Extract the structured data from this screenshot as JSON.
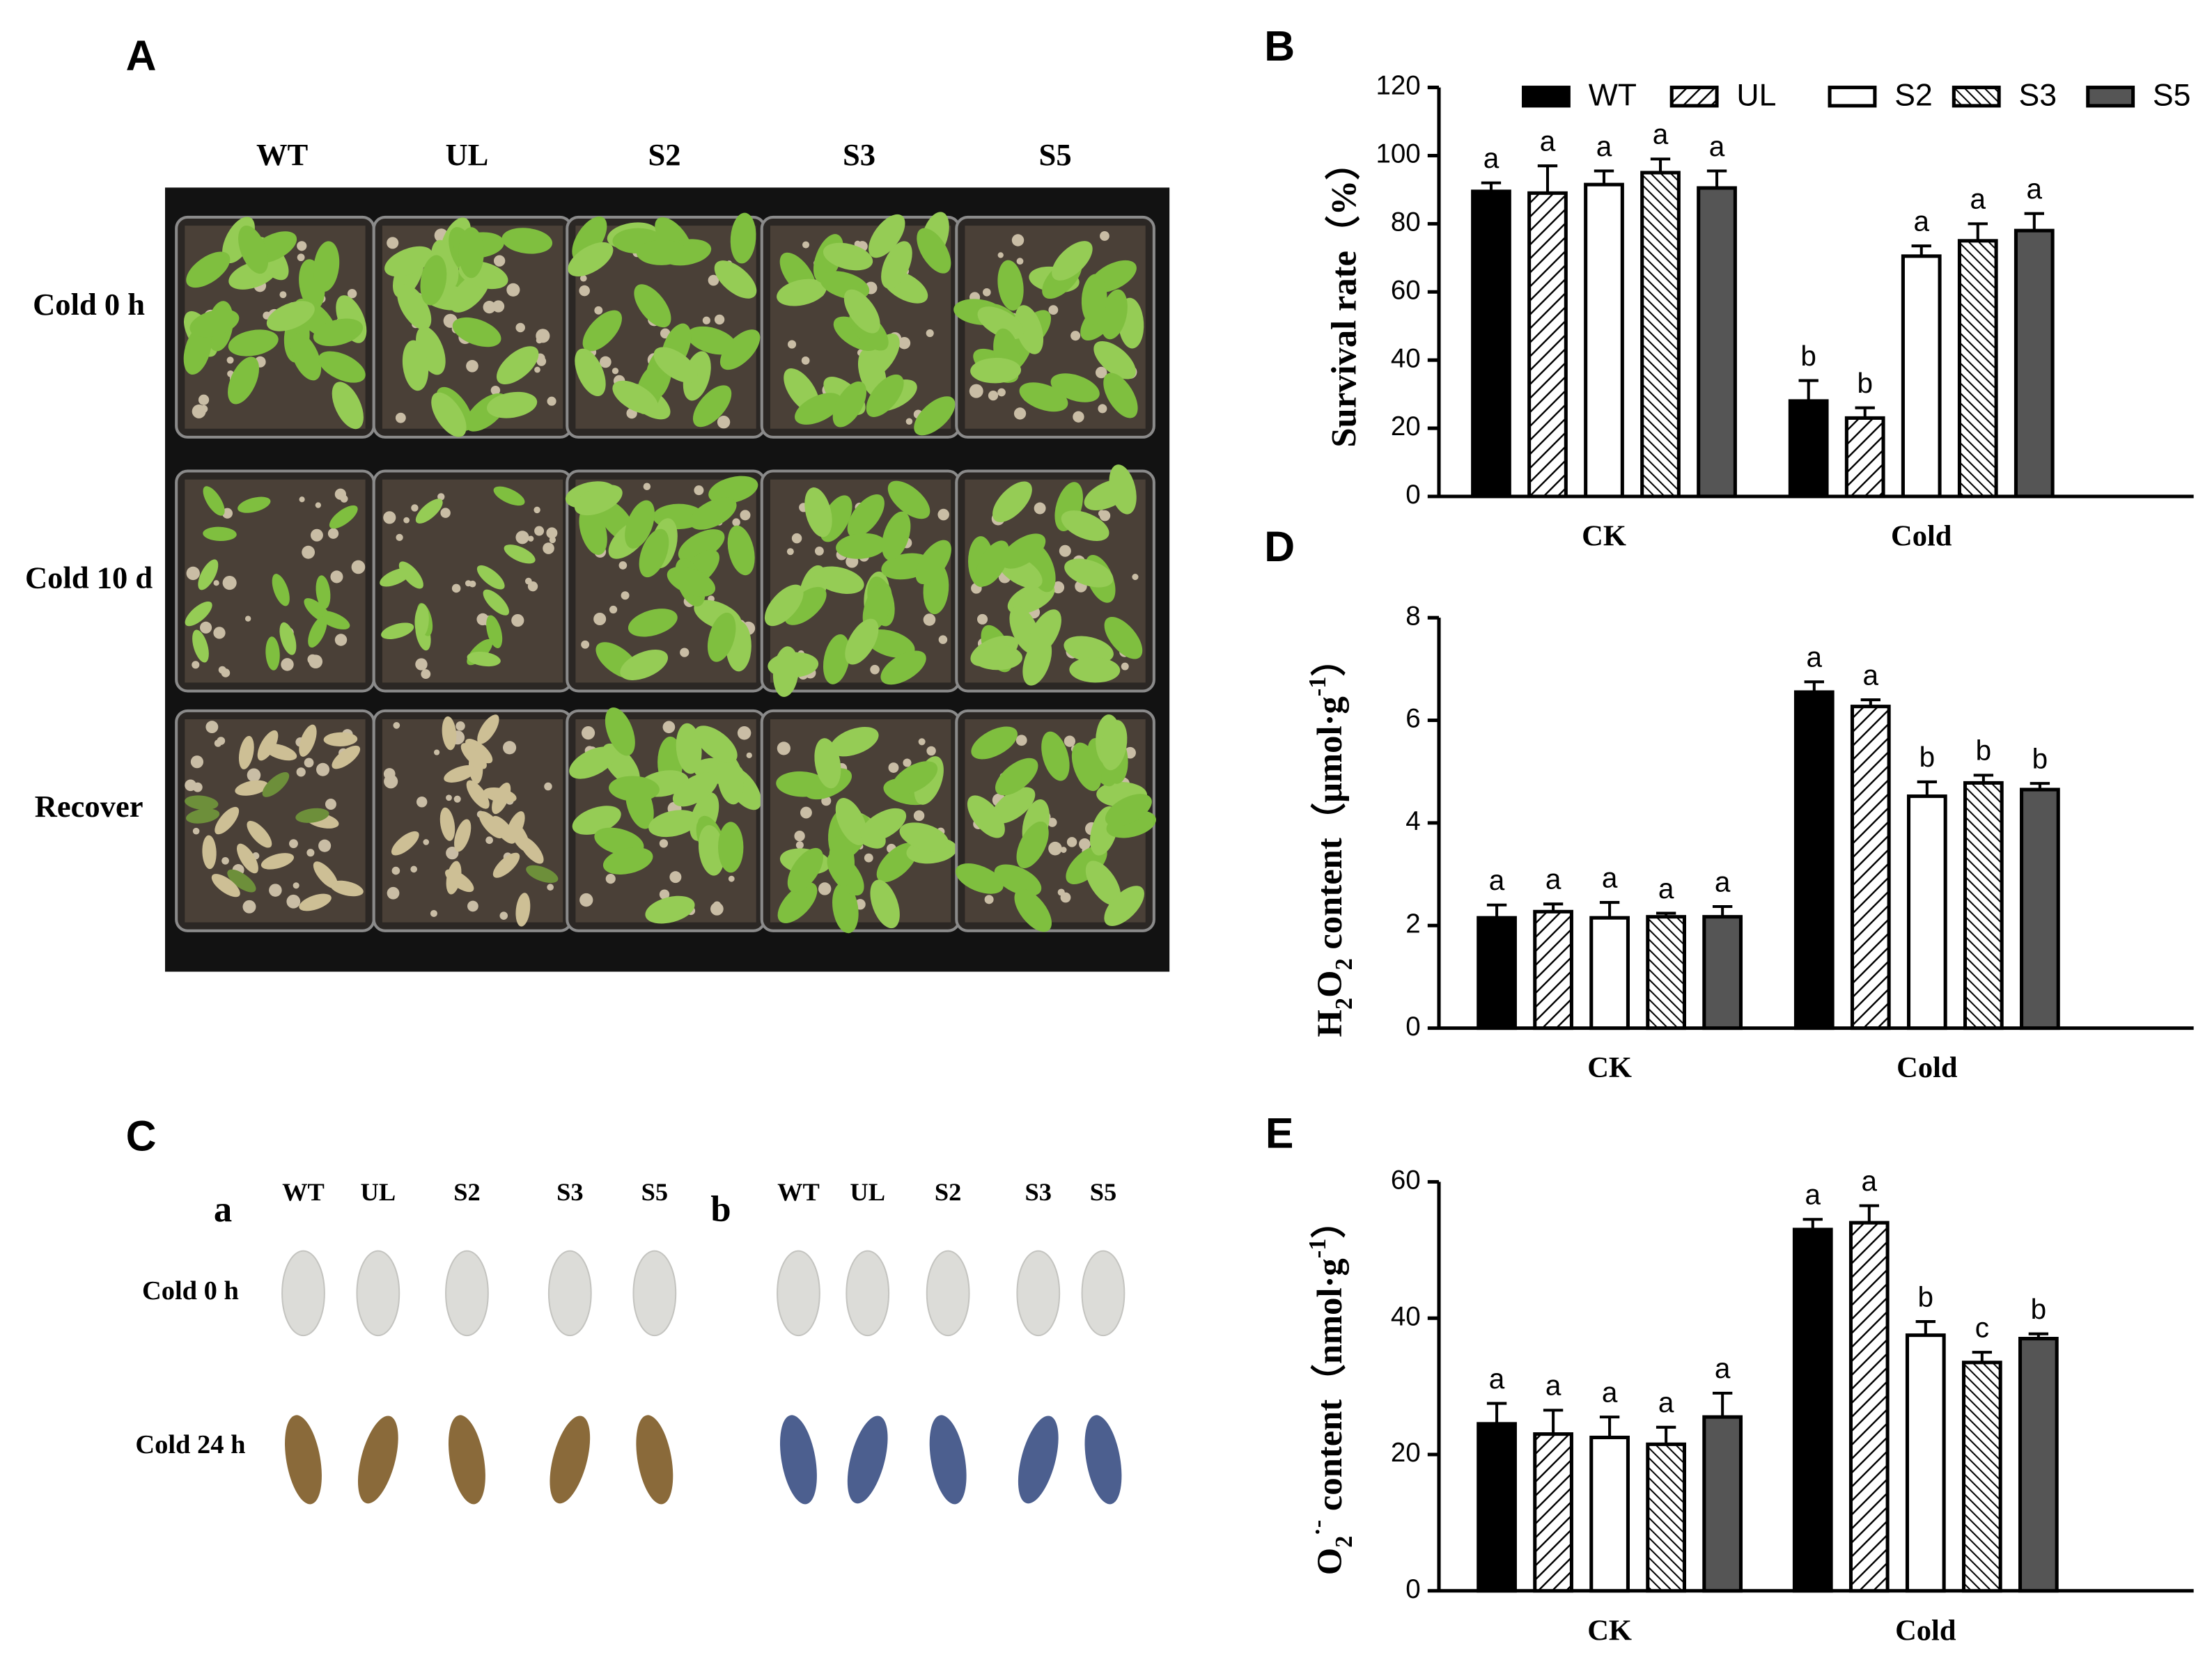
{
  "panel_a": {
    "label": "A",
    "columns": [
      "WT",
      "UL",
      "S2",
      "S3",
      "S5"
    ],
    "rows": [
      "Cold 0 h",
      "Cold 10 d",
      "Recover"
    ]
  },
  "panel_c": {
    "label": "C",
    "sub_labels": [
      "a",
      "b"
    ],
    "columns": [
      "WT",
      "UL",
      "S2",
      "S3",
      "S5"
    ],
    "rows": [
      "Cold 0 h",
      "Cold 24 h"
    ]
  },
  "chart_data": [
    {
      "type": "bar",
      "panel": "B",
      "categories": [
        "CK",
        "Cold"
      ],
      "ylabel": [
        {
          "text": "Survival rate（%）",
          "script": "normal"
        }
      ],
      "ylim": [
        0,
        120
      ],
      "yticks": [
        0,
        20,
        40,
        60,
        80,
        100,
        120
      ],
      "legend": true,
      "series": [
        {
          "name": "WT",
          "color": "#000000",
          "pattern": "solid",
          "values": [
            89.5,
            28
          ],
          "errors": [
            2.5,
            6
          ],
          "letters": [
            "a",
            "b"
          ]
        },
        {
          "name": "UL",
          "color": "#000000",
          "pattern": "hatch",
          "values": [
            89,
            23
          ],
          "errors": [
            8,
            3
          ],
          "letters": [
            "a",
            "b"
          ]
        },
        {
          "name": "S2",
          "color": "#ffffff",
          "pattern": "solid",
          "values": [
            91.5,
            70.5
          ],
          "errors": [
            4,
            3
          ],
          "letters": [
            "a",
            "a"
          ]
        },
        {
          "name": "S3",
          "color": "#000000",
          "pattern": "backhatch",
          "values": [
            95,
            75
          ],
          "errors": [
            4,
            5
          ],
          "letters": [
            "a",
            "a"
          ]
        },
        {
          "name": "S5",
          "color": "#555555",
          "pattern": "solid",
          "values": [
            90.5,
            78
          ],
          "errors": [
            5,
            5
          ],
          "letters": [
            "a",
            "a"
          ]
        }
      ]
    },
    {
      "type": "bar",
      "panel": "D",
      "categories": [
        "CK",
        "Cold"
      ],
      "ylabel": [
        {
          "text": "H",
          "script": "normal"
        },
        {
          "text": "2",
          "script": "sub"
        },
        {
          "text": "O",
          "script": "normal"
        },
        {
          "text": "2",
          "script": "sub"
        },
        {
          "text": " content（μmol·g",
          "script": "normal"
        },
        {
          "text": "-1",
          "script": "super"
        },
        {
          "text": "）",
          "script": "normal"
        }
      ],
      "ylim": [
        0,
        8
      ],
      "yticks": [
        0,
        2,
        4,
        6,
        8
      ],
      "legend": false,
      "series": [
        {
          "color": "#000000",
          "pattern": "solid",
          "values": [
            2.15,
            6.55
          ],
          "errors": [
            0.25,
            0.2
          ],
          "letters": [
            "a",
            "a"
          ]
        },
        {
          "color": "#000000",
          "pattern": "hatch",
          "values": [
            2.27,
            6.27
          ],
          "errors": [
            0.15,
            0.13
          ],
          "letters": [
            "a",
            "a"
          ]
        },
        {
          "color": "#ffffff",
          "pattern": "solid",
          "values": [
            2.15,
            4.52
          ],
          "errors": [
            0.3,
            0.28
          ],
          "letters": [
            "a",
            "b"
          ]
        },
        {
          "color": "#000000",
          "pattern": "backhatch",
          "values": [
            2.17,
            4.78
          ],
          "errors": [
            0.07,
            0.15
          ],
          "letters": [
            "a",
            "b"
          ]
        },
        {
          "color": "#555555",
          "pattern": "solid",
          "values": [
            2.17,
            4.65
          ],
          "errors": [
            0.2,
            0.12
          ],
          "letters": [
            "a",
            "b"
          ]
        }
      ]
    },
    {
      "type": "bar",
      "panel": "E",
      "categories": [
        "CK",
        "Cold"
      ],
      "ylabel": [
        {
          "text": "O",
          "script": "normal"
        },
        {
          "text": "2",
          "script": "sub"
        },
        {
          "text": "·-",
          "script": "super"
        },
        {
          "text": " content（nmol·g",
          "script": "normal"
        },
        {
          "text": "-1",
          "script": "super"
        },
        {
          "text": "）",
          "script": "normal"
        }
      ],
      "ylim": [
        0,
        60
      ],
      "yticks": [
        0,
        20,
        40,
        60
      ],
      "legend": false,
      "series": [
        {
          "color": "#000000",
          "pattern": "solid",
          "values": [
            24.5,
            53
          ],
          "errors": [
            3,
            1.5
          ],
          "letters": [
            "a",
            "a"
          ]
        },
        {
          "color": "#000000",
          "pattern": "hatch",
          "values": [
            23,
            54
          ],
          "errors": [
            3.5,
            2.5
          ],
          "letters": [
            "a",
            "a"
          ]
        },
        {
          "color": "#ffffff",
          "pattern": "solid",
          "values": [
            22.5,
            37.5
          ],
          "errors": [
            3,
            2
          ],
          "letters": [
            "a",
            "b"
          ]
        },
        {
          "color": "#000000",
          "pattern": "backhatch",
          "values": [
            21.5,
            33.5
          ],
          "errors": [
            2.5,
            1.5
          ],
          "letters": [
            "a",
            "c"
          ]
        },
        {
          "color": "#555555",
          "pattern": "solid",
          "values": [
            25.5,
            37
          ],
          "errors": [
            3.5,
            0.7
          ],
          "letters": [
            "a",
            "b"
          ]
        }
      ]
    }
  ]
}
